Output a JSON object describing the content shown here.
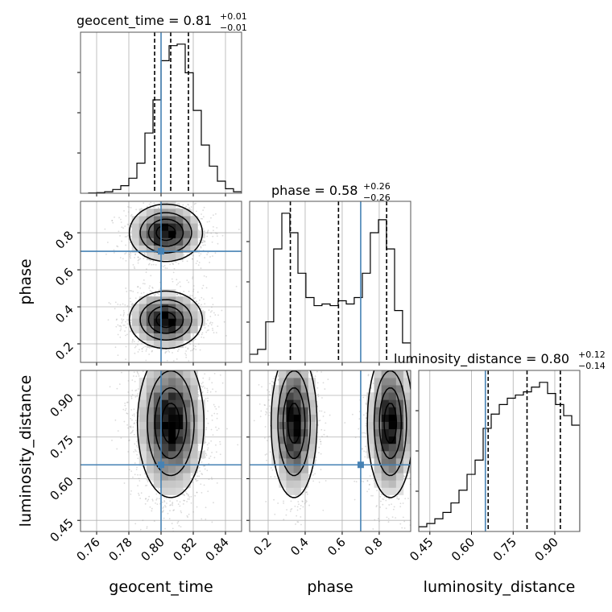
{
  "chart_data": {
    "type": "corner",
    "parameters": [
      "geocent_time",
      "phase",
      "luminosity_distance"
    ],
    "truths": {
      "geocent_time": 0.8,
      "phase": 0.7,
      "luminosity_distance": 0.65
    },
    "truth_color": "#4682b4",
    "titles": [
      {
        "param": "geocent_time",
        "prefix": "geocent_time = ",
        "median": "0.81",
        "plus": "+0.01",
        "minus": "−0.01"
      },
      {
        "param": "phase",
        "prefix": "phase = ",
        "median": "0.58",
        "plus": "+0.26",
        "minus": "−0.26"
      },
      {
        "param": "luminosity_distance",
        "prefix": "luminosity_distance = ",
        "median": "0.80",
        "plus": "+0.12",
        "minus": "−0.14"
      }
    ],
    "axes": {
      "geocent_time": {
        "range": [
          0.75,
          0.85
        ],
        "ticks": [
          "0.76",
          "0.78",
          "0.80",
          "0.82",
          "0.84"
        ]
      },
      "phase": {
        "range": [
          0.1,
          0.97
        ],
        "ticks": [
          "0.2",
          "0.4",
          "0.6",
          "0.8"
        ]
      },
      "luminosity_distance": {
        "range": [
          0.41,
          0.99
        ],
        "ticks": [
          "0.45",
          "0.60",
          "0.75",
          "0.90"
        ]
      }
    },
    "histograms": {
      "geocent_time": {
        "edges": [
          0.755,
          0.76,
          0.765,
          0.77,
          0.775,
          0.78,
          0.785,
          0.79,
          0.795,
          0.8,
          0.805,
          0.81,
          0.815,
          0.82,
          0.825,
          0.83,
          0.835,
          0.84,
          0.845,
          0.85
        ],
        "counts": [
          0.2,
          0.4,
          1,
          2.5,
          5,
          10,
          20,
          40,
          62,
          88,
          98,
          99,
          80,
          55,
          32,
          18,
          8,
          3,
          1
        ],
        "quantiles": [
          0.796,
          0.806,
          0.817
        ]
      },
      "phase": {
        "edges": [
          0.1,
          0.143,
          0.187,
          0.23,
          0.274,
          0.317,
          0.361,
          0.404,
          0.448,
          0.491,
          0.535,
          0.578,
          0.622,
          0.665,
          0.709,
          0.752,
          0.796,
          0.839,
          0.883,
          0.926,
          0.97
        ],
        "counts": [
          5,
          8,
          25,
          70,
          92,
          80,
          55,
          40,
          35,
          36,
          35,
          38,
          36,
          40,
          55,
          80,
          88,
          70,
          32,
          12
        ],
        "quantiles": [
          0.32,
          0.58,
          0.84
        ]
      },
      "luminosity_distance": {
        "edges": [
          0.41,
          0.439,
          0.468,
          0.497,
          0.526,
          0.555,
          0.584,
          0.613,
          0.642,
          0.671,
          0.7,
          0.729,
          0.758,
          0.787,
          0.816,
          0.845,
          0.874,
          0.903,
          0.932,
          0.961,
          0.99
        ],
        "counts": [
          3,
          5,
          8,
          12,
          18,
          26,
          36,
          45,
          65,
          74,
          80,
          84,
          86,
          88,
          91,
          94,
          87,
          80,
          73,
          67
        ],
        "quantiles": [
          0.66,
          0.8,
          0.92
        ]
      }
    },
    "pairs": [
      {
        "x": "geocent_time",
        "y": "phase",
        "modes": [
          {
            "x": 0.803,
            "y": 0.8,
            "sx": 0.011,
            "sy": 0.075,
            "w": 1
          },
          {
            "x": 0.803,
            "y": 0.33,
            "sx": 0.011,
            "sy": 0.075,
            "w": 1
          }
        ]
      },
      {
        "x": "geocent_time",
        "y": "luminosity_distance",
        "modes": [
          {
            "x": 0.806,
            "y": 0.8,
            "sx": 0.01,
            "sy": 0.13,
            "w": 1
          }
        ]
      },
      {
        "x": "phase",
        "y": "luminosity_distance",
        "modes": [
          {
            "x": 0.34,
            "y": 0.8,
            "sx": 0.06,
            "sy": 0.13,
            "w": 1
          },
          {
            "x": 0.86,
            "y": 0.8,
            "sx": 0.06,
            "sy": 0.13,
            "w": 1
          }
        ]
      }
    ]
  }
}
